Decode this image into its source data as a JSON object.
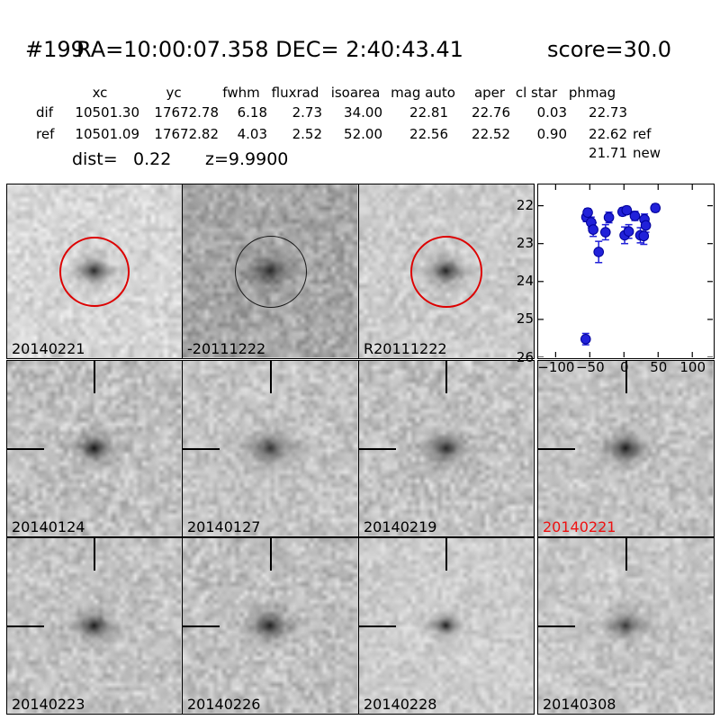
{
  "header": {
    "id": "#199",
    "coords": "RA=10:00:07.358 DEC= 2:40:43.41",
    "score": "score=30.0"
  },
  "table": {
    "columns": [
      "xc",
      "yc",
      "fwhm",
      "fluxrad",
      "isoarea",
      "mag auto",
      "aper",
      "cl star",
      "phmag"
    ],
    "rows": [
      {
        "label": "dif",
        "xc": "10501.30",
        "yc": "17672.78",
        "fwhm": "6.18",
        "fluxrad": "2.73",
        "isoarea": "34.00",
        "mag_auto": "22.81",
        "aper": "22.76",
        "cl_star": "0.03",
        "phmag": "22.73",
        "suffix": ""
      },
      {
        "label": "ref",
        "xc": "10501.09",
        "yc": "17672.82",
        "fwhm": "4.03",
        "fluxrad": "2.52",
        "isoarea": "52.00",
        "mag_auto": "22.56",
        "aper": "22.52",
        "cl_star": "0.90",
        "phmag": "22.62",
        "suffix": "ref"
      }
    ],
    "extra_phmag": {
      "value": "21.71",
      "suffix": "new"
    },
    "dist_label": "dist=",
    "dist_value": "0.22",
    "z_text": "z=9.9900"
  },
  "colors": {
    "aperture_red": "#dd0000",
    "aperture_black": "#1a1a1a",
    "highlight_label": "#ee1111",
    "marker_blue": "#2121d9",
    "marker_edge": "#000099"
  },
  "panels": [
    {
      "label": "20140221",
      "label_color": "#000000",
      "marker": "circle",
      "circle_color": "#dd0000",
      "circle_size": 78,
      "circle_stroke": 2.5,
      "tone": 215,
      "noise": 20,
      "blob_sigma": 9,
      "blob_depth": 0.8
    },
    {
      "label": "-20111222",
      "label_color": "#000000",
      "marker": "circle",
      "circle_color": "#1a1a1a",
      "circle_size": 80,
      "circle_stroke": 1.6,
      "tone": 167,
      "noise": 26,
      "blob_sigma": 11,
      "blob_depth": 0.75
    },
    {
      "label": "R20111222",
      "label_color": "#000000",
      "marker": "circle",
      "circle_color": "#dd0000",
      "circle_size": 80,
      "circle_stroke": 2.5,
      "tone": 204,
      "noise": 19,
      "blob_sigma": 9,
      "blob_depth": 0.85
    },
    {
      "label": "20140124",
      "label_color": "#000000",
      "marker": "crosshair",
      "tone": 192,
      "noise": 26,
      "blob_sigma": 9,
      "blob_depth": 0.92
    },
    {
      "label": "20140127",
      "label_color": "#000000",
      "marker": "crosshair",
      "tone": 196,
      "noise": 23,
      "blob_sigma": 11,
      "blob_depth": 0.7
    },
    {
      "label": "20140219",
      "label_color": "#000000",
      "marker": "crosshair",
      "tone": 194,
      "noise": 25,
      "blob_sigma": 10,
      "blob_depth": 0.8
    },
    {
      "label": "20140221",
      "label_color": "#ee1111",
      "marker": "crosshair",
      "tone": 196,
      "noise": 23,
      "blob_sigma": 10,
      "blob_depth": 0.88
    },
    {
      "label": "20140223",
      "label_color": "#000000",
      "marker": "crosshair",
      "tone": 195,
      "noise": 23,
      "blob_sigma": 9,
      "blob_depth": 0.88
    },
    {
      "label": "20140226",
      "label_color": "#000000",
      "marker": "crosshair",
      "tone": 192,
      "noise": 25,
      "blob_sigma": 10,
      "blob_depth": 0.85
    },
    {
      "label": "20140228",
      "label_color": "#000000",
      "marker": "crosshair",
      "tone": 205,
      "noise": 18,
      "blob_sigma": 7,
      "blob_depth": 0.85
    },
    {
      "label": "20140308",
      "label_color": "#000000",
      "marker": "crosshair",
      "tone": 199,
      "noise": 21,
      "blob_sigma": 9,
      "blob_depth": 0.72
    }
  ],
  "chart_data": {
    "type": "scatter",
    "title": "",
    "xlabel": "",
    "ylabel": "",
    "xlim": [
      -125.5,
      130
    ],
    "ylim": [
      26.0,
      21.44
    ],
    "y_axis_inverted_magnitudes": true,
    "grid": false,
    "legend": null,
    "xticks": [
      -100,
      -50,
      0,
      50,
      100
    ],
    "xtick_labels": [
      "−100",
      "−50",
      "0",
      "50",
      "100"
    ],
    "yticks": [
      22,
      23,
      24,
      25,
      26
    ],
    "ytick_labels": [
      "22",
      "23",
      "24",
      "25",
      "26"
    ],
    "series": [
      {
        "name": "lightcurve-mag-vs-epoch",
        "marker": "circle",
        "color": "#2121d9",
        "points": [
          {
            "x": -56,
            "y": 25.52,
            "err": 0.15
          },
          {
            "x": -55,
            "y": 22.3,
            "err": 0.12
          },
          {
            "x": -53,
            "y": 22.18,
            "err": 0.1
          },
          {
            "x": -48,
            "y": 22.44,
            "err": 0.14
          },
          {
            "x": -45,
            "y": 22.63,
            "err": 0.18
          },
          {
            "x": -37,
            "y": 23.22,
            "err": 0.28
          },
          {
            "x": -27,
            "y": 22.7,
            "err": 0.2
          },
          {
            "x": -22,
            "y": 22.31,
            "err": 0.14
          },
          {
            "x": -2,
            "y": 22.16,
            "err": 0.1
          },
          {
            "x": 1,
            "y": 22.78,
            "err": 0.22
          },
          {
            "x": 4,
            "y": 22.12,
            "err": 0.1
          },
          {
            "x": 7,
            "y": 22.68,
            "err": 0.18
          },
          {
            "x": 16,
            "y": 22.27,
            "err": 0.12
          },
          {
            "x": 24,
            "y": 22.78,
            "err": 0.2
          },
          {
            "x": 29,
            "y": 22.8,
            "err": 0.22
          },
          {
            "x": 30,
            "y": 22.36,
            "err": 0.14
          },
          {
            "x": 32,
            "y": 22.52,
            "err": 0.18
          },
          {
            "x": 46,
            "y": 22.06,
            "err": 0.1
          }
        ]
      }
    ]
  }
}
